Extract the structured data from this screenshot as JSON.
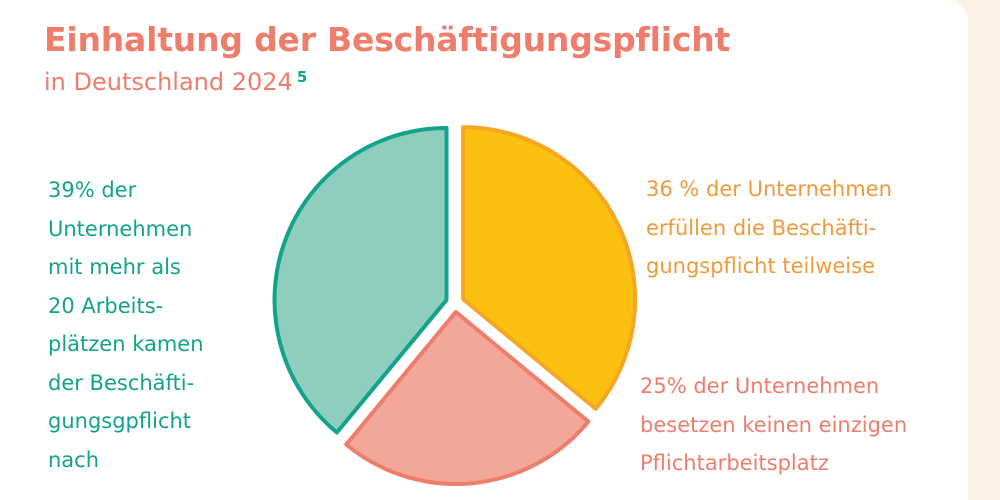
{
  "header": {
    "title": "Einhaltung der Beschäftigungspflicht",
    "subtitle": "in Deutschland 2024",
    "footnote": "5"
  },
  "chart_data": {
    "type": "pie",
    "title": "Einhaltung der Beschäftigungspflicht in Deutschland 2024",
    "slices": [
      {
        "label": "36 % der Unternehmen erfüllen die Beschäftigungspflicht teilweise",
        "value": 36,
        "color": "#fcc110",
        "stroke": "#f6a623"
      },
      {
        "label": "25% der Unternehmen besetzen keinen einzigen Pflichtarbeitsplatz",
        "value": 25,
        "color": "#f3a79a",
        "stroke": "#ef7d6c"
      },
      {
        "label": "39% der Unternehmen mit mehr als 20 Arbeitsplätzen kamen der Beschäftigungsgpflicht nach",
        "value": 39,
        "color": "#8fcebf",
        "stroke": "#13a38a"
      }
    ]
  },
  "labels": {
    "left": "39% der\nUnternehmen\nmit mehr als\n20 Arbeits-\nplätzen kamen\nder Beschäfti-\ngungsgpflicht\nnach",
    "right_top": "36 % der Unternehmen\nerfüllen die Beschäfti-\ngungspflicht teilweise",
    "right_bottom": "25% der Unternehmen\nbesetzen keinen einzigen\nPflichtarbeitsplatz"
  }
}
